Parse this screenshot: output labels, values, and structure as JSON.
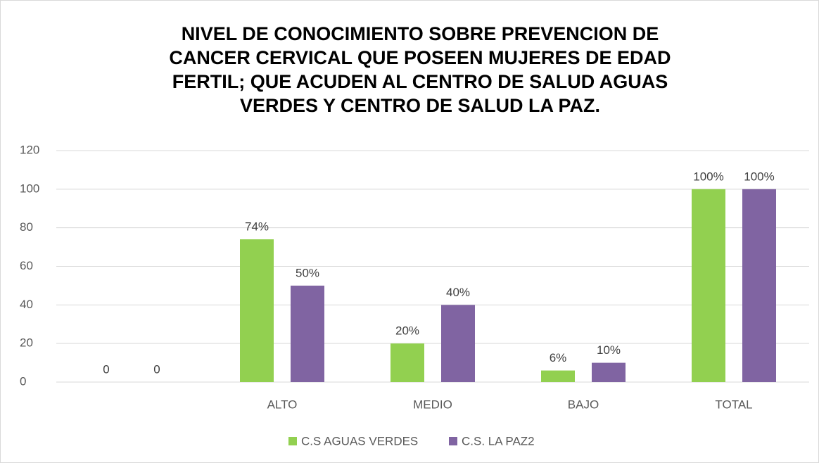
{
  "chart_data": {
    "type": "bar",
    "title": [
      "NIVEL DE CONOCIMIENTO SOBRE PREVENCION DE",
      "CANCER CERVICAL QUE POSEEN MUJERES DE EDAD",
      "FERTIL; QUE ACUDEN AL CENTRO DE SALUD AGUAS",
      "VERDES Y CENTRO DE SALUD LA PAZ."
    ],
    "categories": [
      null,
      "ALTO",
      "MEDIO",
      "BAJO",
      "TOTAL"
    ],
    "series": [
      {
        "name": "C.S AGUAS VERDES",
        "color": "#92d050",
        "values": [
          0,
          74,
          20,
          6,
          100
        ],
        "value_labels": [
          "0",
          "74%",
          "20%",
          "6%",
          "100%"
        ]
      },
      {
        "name": "C.S. LA PAZ2",
        "color": "#8064a2",
        "values": [
          0,
          50,
          40,
          10,
          100
        ],
        "value_labels": [
          "0",
          "50%",
          "40%",
          "10%",
          "100%"
        ]
      }
    ],
    "ylim": [
      0,
      120
    ],
    "yticks": [
      0,
      20,
      40,
      60,
      80,
      100,
      120
    ],
    "grid": true,
    "legend": "bottom"
  }
}
